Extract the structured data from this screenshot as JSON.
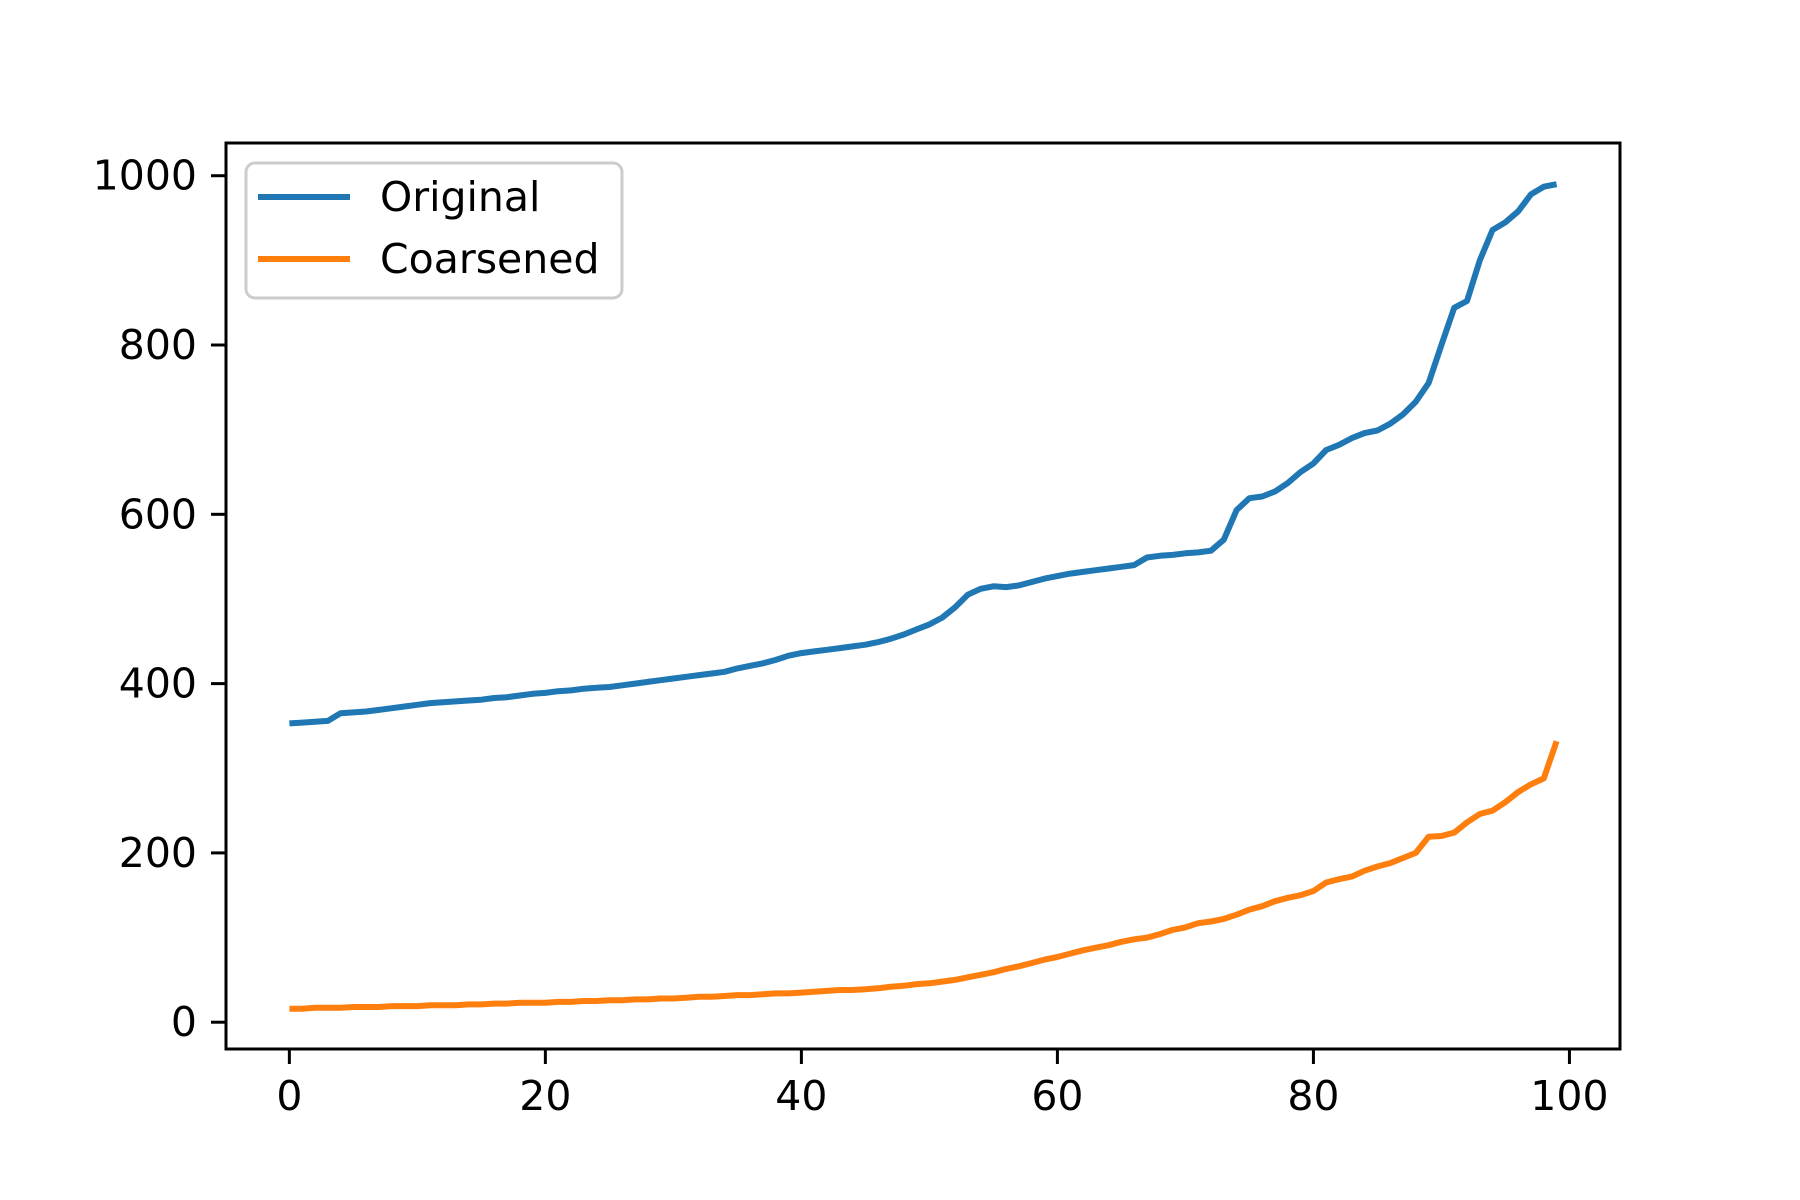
{
  "figure": {
    "background": "#ffffff",
    "title": ""
  },
  "legend": {
    "position": "upper-left",
    "border_color": "#cccccc",
    "background": "#ffffff",
    "entries": [
      {
        "label": "Original",
        "color": "#1f77b4"
      },
      {
        "label": "Coarsened",
        "color": "#ff7f0e"
      }
    ]
  },
  "chart_data": {
    "type": "line",
    "title": "",
    "xlabel": "",
    "ylabel": "",
    "grid": false,
    "legend_position": "upper left",
    "x_start": 0,
    "x_step": 1,
    "n_points": 100,
    "axes": {
      "xlim": [
        -4.95,
        103.95
      ],
      "ylim": [
        -31.65,
        1038.65
      ],
      "xticks": [
        0,
        20,
        40,
        60,
        80,
        100
      ],
      "xtick_labels": [
        "0",
        "20",
        "40",
        "60",
        "80",
        "100"
      ],
      "yticks": [
        0,
        200,
        400,
        600,
        800,
        1000
      ],
      "ytick_labels": [
        "0",
        "200",
        "400",
        "600",
        "800",
        "1000"
      ],
      "spine_color": "#000000",
      "tick_color": "#000000"
    },
    "series": [
      {
        "name": "Original",
        "color": "#1f77b4",
        "line_width": 6,
        "values": [
          353,
          354,
          355,
          356,
          365,
          366,
          367,
          369,
          371,
          373,
          375,
          377,
          378,
          379,
          380,
          381,
          383,
          384,
          386,
          388,
          389,
          391,
          392,
          394,
          395,
          396,
          398,
          400,
          402,
          404,
          406,
          408,
          410,
          412,
          414,
          418,
          421,
          424,
          428,
          433,
          436,
          438,
          440,
          442,
          444,
          446,
          449,
          453,
          458,
          464,
          470,
          478,
          490,
          505,
          512,
          515,
          514,
          516,
          520,
          524,
          527,
          530,
          532,
          534,
          536,
          538,
          540,
          549,
          551,
          552,
          554,
          555,
          557,
          570,
          605,
          619,
          621,
          627,
          637,
          650,
          660,
          676,
          682,
          690,
          696,
          699,
          707,
          718,
          733,
          755,
          800,
          844,
          852,
          900,
          936,
          945,
          958,
          978,
          987,
          990
        ]
      },
      {
        "name": "Coarsened",
        "color": "#ff7f0e",
        "line_width": 6,
        "values": [
          16,
          16,
          17,
          17,
          17,
          18,
          18,
          18,
          19,
          19,
          19,
          20,
          20,
          20,
          21,
          21,
          22,
          22,
          23,
          23,
          23,
          24,
          24,
          25,
          25,
          26,
          26,
          27,
          27,
          28,
          28,
          29,
          30,
          30,
          31,
          32,
          32,
          33,
          34,
          34,
          35,
          36,
          37,
          38,
          38,
          39,
          40,
          42,
          43,
          45,
          46,
          48,
          50,
          53,
          56,
          59,
          63,
          66,
          70,
          74,
          77,
          81,
          85,
          88,
          91,
          95,
          98,
          100,
          104,
          109,
          112,
          117,
          119,
          122,
          127,
          133,
          137,
          143,
          147,
          150,
          155,
          165,
          169,
          172,
          179,
          184,
          188,
          194,
          200,
          219,
          220,
          224,
          236,
          246,
          250,
          260,
          272,
          281,
          288,
          332
        ]
      }
    ]
  }
}
